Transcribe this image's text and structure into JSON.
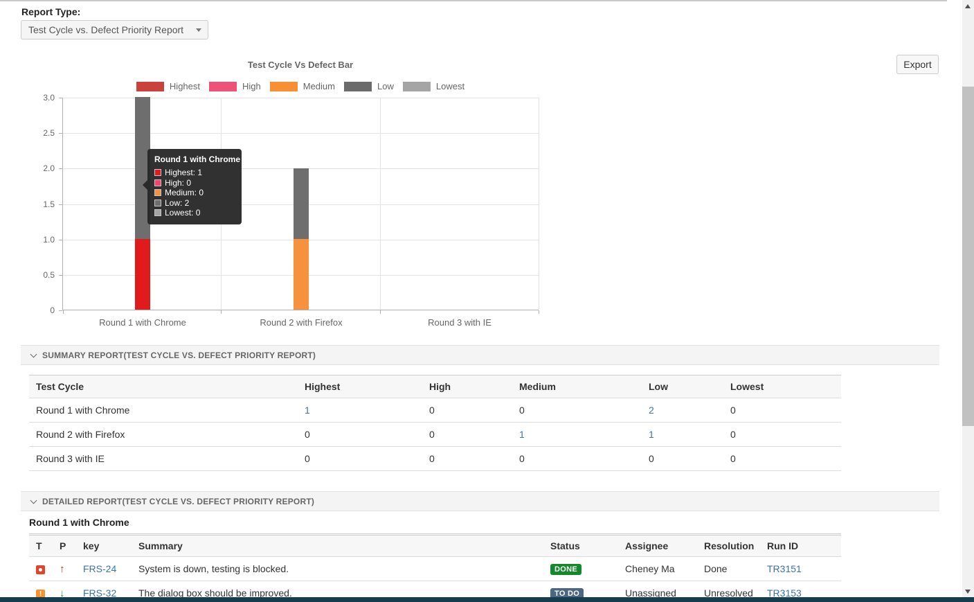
{
  "report_type": {
    "label": "Report Type:",
    "selected": "Test Cycle vs. Defect Priority Report"
  },
  "toolbar": {
    "export_label": "Export"
  },
  "chart_data": {
    "type": "bar",
    "stacked": true,
    "title": "Test Cycle Vs Defect Bar",
    "categories": [
      "Round 1 with Chrome",
      "Round 2 with Firefox",
      "Round 3 with IE"
    ],
    "series": [
      {
        "name": "Highest",
        "legend_color": "#c9423c",
        "bar_color": "#e11a1c",
        "values": [
          1,
          0,
          0
        ]
      },
      {
        "name": "High",
        "legend_color": "#ee5377",
        "bar_color": "#f4436c",
        "values": [
          0,
          0,
          0
        ]
      },
      {
        "name": "Medium",
        "legend_color": "#f79032",
        "bar_color": "#f6913d",
        "values": [
          0,
          1,
          0
        ]
      },
      {
        "name": "Low",
        "legend_color": "#6b6b6b",
        "bar_color": "#6e6e6e",
        "values": [
          2,
          1,
          0
        ]
      },
      {
        "name": "Lowest",
        "legend_color": "#a5a5a5",
        "bar_color": "#a5a5a5",
        "values": [
          0,
          0,
          0
        ]
      }
    ],
    "ylim": [
      0,
      3
    ],
    "yticks": [
      "3.0",
      "2.5",
      "2.0",
      "1.5",
      "1.0",
      "0.5",
      "0"
    ],
    "grid": true,
    "legend_position": "top"
  },
  "tooltip": {
    "title": "Round 1 with Chrome",
    "items": [
      {
        "label": "Highest: 1",
        "color": "#e11a1c"
      },
      {
        "label": "High: 0",
        "color": "#f4436c"
      },
      {
        "label": "Medium: 0",
        "color": "#f6913d"
      },
      {
        "label": "Low: 2",
        "color": "#6e6e6e"
      },
      {
        "label": "Lowest: 0",
        "color": "#a5a5a5"
      }
    ]
  },
  "summary": {
    "section_title": "SUMMARY REPORT(TEST CYCLE VS. DEFECT PRIORITY REPORT)",
    "columns": [
      "Test Cycle",
      "Highest",
      "High",
      "Medium",
      "Low",
      "Lowest"
    ],
    "rows": [
      {
        "cycle": "Round 1 with Chrome",
        "values": [
          {
            "text": "1",
            "link": true
          },
          {
            "text": "0",
            "link": false
          },
          {
            "text": "0",
            "link": false
          },
          {
            "text": "2",
            "link": true
          },
          {
            "text": "0",
            "link": false
          }
        ]
      },
      {
        "cycle": "Round 2 with Firefox",
        "values": [
          {
            "text": "0",
            "link": false
          },
          {
            "text": "0",
            "link": false
          },
          {
            "text": "1",
            "link": true
          },
          {
            "text": "1",
            "link": true
          },
          {
            "text": "0",
            "link": false
          }
        ]
      },
      {
        "cycle": "Round 3 with IE",
        "values": [
          {
            "text": "0",
            "link": false
          },
          {
            "text": "0",
            "link": false
          },
          {
            "text": "0",
            "link": false
          },
          {
            "text": "0",
            "link": false
          },
          {
            "text": "0",
            "link": false
          }
        ]
      }
    ]
  },
  "detailed": {
    "section_title": "DETAILED REPORT(TEST CYCLE VS. DEFECT PRIORITY REPORT)",
    "cycle_heading": "Round 1 with Chrome",
    "columns": {
      "t": "T",
      "p": "P",
      "key": "key",
      "summary": "Summary",
      "status": "Status",
      "assignee": "Assignee",
      "resolution": "Resolution",
      "run_id": "Run ID"
    },
    "rows": [
      {
        "type_icon": "bug",
        "priority_icon": "arrow-up",
        "key": "FRS-24",
        "summary": "System is down, testing is blocked.",
        "status": "DONE",
        "status_color": "#14892c",
        "assignee": "Cheney Ma",
        "resolution": "Done",
        "run_id": "TR3151"
      },
      {
        "type_icon": "improvement",
        "priority_icon": "arrow-down",
        "key": "FRS-32",
        "summary": "The dialog box should be improved.",
        "status": "TO DO",
        "status_color": "#4a6785",
        "assignee": "Unassigned",
        "resolution": "Unresolved",
        "run_id": "TR3153"
      }
    ]
  },
  "colors": {
    "link": "#3b73af",
    "status_done": "#14892c",
    "status_todo": "#4a6785",
    "bottom_bar": "#173c4e"
  }
}
